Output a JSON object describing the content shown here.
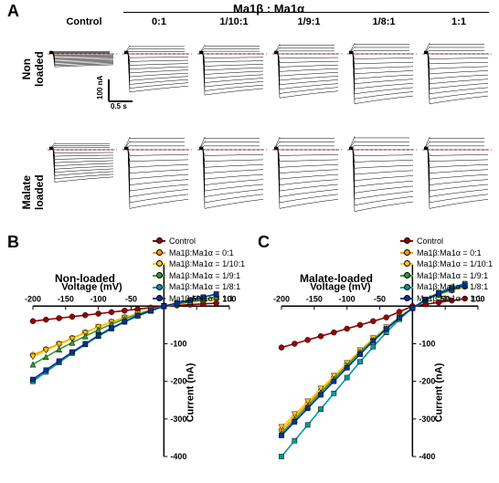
{
  "panelA": {
    "label": "A",
    "header": "Ma1β : Ma1α",
    "columns": [
      "Control",
      "0:1",
      "1/10:1",
      "1/9:1",
      "1/8:1",
      "1:1"
    ],
    "rows": [
      "Non\nloaded",
      "Malate\nloaded"
    ],
    "scalebar": {
      "y_label": "100 nA",
      "x_label": "0.5 s"
    },
    "trace_color": "#000000",
    "dashed_line_color": "#e60000",
    "panel_border_color": "#000000",
    "bg": "#ffffff"
  },
  "panelB": {
    "label": "B",
    "title": "Non-loaded",
    "xlabel": "Voltage (mV)",
    "ylabel": "Current (nA)",
    "xlim": [
      -200,
      100
    ],
    "ylim": [
      -400,
      110
    ],
    "xticks": [
      -200,
      -150,
      -100,
      -50,
      50,
      100
    ],
    "yticks": [
      -400,
      -300,
      -200,
      -100
    ],
    "series": [
      {
        "name": "Control",
        "color": "#990000",
        "marker": "circle",
        "points": [
          [
            -200,
            -40
          ],
          [
            -180,
            -36
          ],
          [
            -160,
            -32
          ],
          [
            -140,
            -28
          ],
          [
            -120,
            -24
          ],
          [
            -100,
            -20
          ],
          [
            -80,
            -16
          ],
          [
            -60,
            -12
          ],
          [
            -40,
            -8
          ],
          [
            -20,
            -4
          ],
          [
            0,
            0
          ],
          [
            20,
            2
          ],
          [
            40,
            4
          ],
          [
            60,
            6
          ],
          [
            80,
            8
          ]
        ]
      },
      {
        "name": "Ma1β:Ma1α = 0:1",
        "color": "#ff9900",
        "marker": "circle",
        "points": [
          [
            -200,
            -130
          ],
          [
            -180,
            -115
          ],
          [
            -160,
            -100
          ],
          [
            -140,
            -85
          ],
          [
            -120,
            -70
          ],
          [
            -100,
            -55
          ],
          [
            -80,
            -42
          ],
          [
            -60,
            -30
          ],
          [
            -40,
            -20
          ],
          [
            -20,
            -10
          ],
          [
            0,
            0
          ],
          [
            20,
            5
          ],
          [
            40,
            10
          ],
          [
            60,
            15
          ],
          [
            80,
            20
          ]
        ]
      },
      {
        "name": "Ma1β:Ma1α = 1/10:1",
        "color": "#ffcc00",
        "marker": "tri-down",
        "points": [
          [
            -200,
            -135
          ],
          [
            -180,
            -118
          ],
          [
            -160,
            -102
          ],
          [
            -140,
            -87
          ],
          [
            -120,
            -72
          ],
          [
            -100,
            -56
          ],
          [
            -80,
            -43
          ],
          [
            -60,
            -31
          ],
          [
            -40,
            -20
          ],
          [
            -20,
            -10
          ],
          [
            0,
            0
          ],
          [
            20,
            5
          ],
          [
            40,
            10
          ],
          [
            60,
            15
          ],
          [
            80,
            20
          ]
        ]
      },
      {
        "name": "Ma1β:Ma1α = 1/9:1",
        "color": "#339933",
        "marker": "tri-up",
        "points": [
          [
            -200,
            -155
          ],
          [
            -180,
            -135
          ],
          [
            -160,
            -115
          ],
          [
            -140,
            -97
          ],
          [
            -120,
            -80
          ],
          [
            -100,
            -63
          ],
          [
            -80,
            -48
          ],
          [
            -60,
            -34
          ],
          [
            -40,
            -22
          ],
          [
            -20,
            -11
          ],
          [
            0,
            0
          ],
          [
            20,
            6
          ],
          [
            40,
            12
          ],
          [
            60,
            18
          ],
          [
            80,
            24
          ]
        ]
      },
      {
        "name": "Ma1β:Ma1α = 1/8:1",
        "color": "#009999",
        "marker": "square",
        "points": [
          [
            -200,
            -200
          ],
          [
            -180,
            -175
          ],
          [
            -160,
            -150
          ],
          [
            -140,
            -125
          ],
          [
            -120,
            -102
          ],
          [
            -100,
            -80
          ],
          [
            -80,
            -60
          ],
          [
            -60,
            -42
          ],
          [
            -40,
            -26
          ],
          [
            -20,
            -13
          ],
          [
            0,
            0
          ],
          [
            20,
            8
          ],
          [
            40,
            16
          ],
          [
            60,
            24
          ],
          [
            80,
            32
          ]
        ]
      },
      {
        "name": "Ma1β:Ma1α = 1:1",
        "color": "#003399",
        "marker": "square",
        "points": [
          [
            -200,
            -195
          ],
          [
            -180,
            -170
          ],
          [
            -160,
            -146
          ],
          [
            -140,
            -122
          ],
          [
            -120,
            -100
          ],
          [
            -100,
            -78
          ],
          [
            -80,
            -58
          ],
          [
            -60,
            -41
          ],
          [
            -40,
            -25
          ],
          [
            -20,
            -12
          ],
          [
            0,
            0
          ],
          [
            20,
            8
          ],
          [
            40,
            16
          ],
          [
            60,
            24
          ],
          [
            80,
            32
          ]
        ]
      }
    ]
  },
  "panelC": {
    "label": "C",
    "title": "Malate-loaded",
    "xlabel": "Voltage (mV)",
    "ylabel": "Current (nA)",
    "xlim": [
      -200,
      100
    ],
    "ylim": [
      -400,
      110
    ],
    "xticks": [
      -200,
      -150,
      -100,
      -50,
      50,
      100
    ],
    "yticks": [
      -400,
      -300,
      -200,
      -100
    ],
    "series": [
      {
        "name": "Control",
        "color": "#990000",
        "marker": "circle",
        "points": [
          [
            -200,
            -110
          ],
          [
            -180,
            -100
          ],
          [
            -160,
            -90
          ],
          [
            -140,
            -80
          ],
          [
            -120,
            -70
          ],
          [
            -100,
            -60
          ],
          [
            -80,
            -50
          ],
          [
            -60,
            -40
          ],
          [
            -40,
            -30
          ],
          [
            -20,
            -15
          ],
          [
            0,
            0
          ],
          [
            20,
            5
          ],
          [
            40,
            10
          ],
          [
            60,
            15
          ],
          [
            80,
            20
          ]
        ]
      },
      {
        "name": "Ma1β:Ma1α = 0:1",
        "color": "#ff9900",
        "marker": "circle",
        "points": [
          [
            -200,
            -330
          ],
          [
            -180,
            -295
          ],
          [
            -160,
            -260
          ],
          [
            -140,
            -225
          ],
          [
            -120,
            -190
          ],
          [
            -100,
            -155
          ],
          [
            -80,
            -120
          ],
          [
            -60,
            -88
          ],
          [
            -40,
            -58
          ],
          [
            -20,
            -30
          ],
          [
            0,
            -5
          ],
          [
            20,
            15
          ],
          [
            40,
            30
          ],
          [
            60,
            42
          ],
          [
            80,
            52
          ]
        ]
      },
      {
        "name": "Ma1β:Ma1α = 1/10:1",
        "color": "#ffcc00",
        "marker": "tri-down",
        "points": [
          [
            -200,
            -322
          ],
          [
            -180,
            -288
          ],
          [
            -160,
            -254
          ],
          [
            -140,
            -220
          ],
          [
            -120,
            -186
          ],
          [
            -100,
            -152
          ],
          [
            -80,
            -118
          ],
          [
            -60,
            -86
          ],
          [
            -40,
            -57
          ],
          [
            -20,
            -29
          ],
          [
            0,
            -5
          ],
          [
            20,
            15
          ],
          [
            40,
            30
          ],
          [
            60,
            42
          ],
          [
            80,
            52
          ]
        ]
      },
      {
        "name": "Ma1β:Ma1α = 1/9:1",
        "color": "#339933",
        "marker": "tri-up",
        "points": [
          [
            -200,
            -338
          ],
          [
            -180,
            -302
          ],
          [
            -160,
            -266
          ],
          [
            -140,
            -230
          ],
          [
            -120,
            -194
          ],
          [
            -100,
            -158
          ],
          [
            -80,
            -122
          ],
          [
            -60,
            -90
          ],
          [
            -40,
            -59
          ],
          [
            -20,
            -30
          ],
          [
            0,
            -5
          ],
          [
            20,
            16
          ],
          [
            40,
            32
          ],
          [
            60,
            44
          ],
          [
            80,
            54
          ]
        ]
      },
      {
        "name": "Ma1β:Ma1α = 1/8:1",
        "color": "#009999",
        "marker": "square",
        "points": [
          [
            -200,
            -400
          ],
          [
            -180,
            -358
          ],
          [
            -160,
            -316
          ],
          [
            -140,
            -274
          ],
          [
            -120,
            -232
          ],
          [
            -100,
            -190
          ],
          [
            -80,
            -148
          ],
          [
            -60,
            -108
          ],
          [
            -40,
            -70
          ],
          [
            -20,
            -35
          ],
          [
            0,
            -5
          ],
          [
            20,
            18
          ],
          [
            40,
            36
          ],
          [
            60,
            50
          ],
          [
            80,
            60
          ]
        ]
      },
      {
        "name": "Ma1β:Ma1α = 1:1",
        "color": "#003399",
        "marker": "square",
        "points": [
          [
            -200,
            -344
          ],
          [
            -180,
            -308
          ],
          [
            -160,
            -272
          ],
          [
            -140,
            -236
          ],
          [
            -120,
            -200
          ],
          [
            -100,
            -164
          ],
          [
            -80,
            -128
          ],
          [
            -60,
            -93
          ],
          [
            -40,
            -61
          ],
          [
            -20,
            -31
          ],
          [
            0,
            -5
          ],
          [
            20,
            17
          ],
          [
            40,
            34
          ],
          [
            60,
            46
          ],
          [
            80,
            56
          ]
        ]
      }
    ]
  },
  "legend_entries": [
    {
      "label": "Control",
      "color": "#990000"
    },
    {
      "label": "Ma1β:Ma1α = 0:1",
      "color": "#ff9900"
    },
    {
      "label": "Ma1β:Ma1α = 1/10:1",
      "color": "#ffcc00"
    },
    {
      "label": "Ma1β:Ma1α = 1/9:1",
      "color": "#339933"
    },
    {
      "label": "Ma1β:Ma1α = 1/8:1",
      "color": "#009999"
    },
    {
      "label": "Ma1β:Ma1α = 1:1",
      "color": "#003399"
    }
  ]
}
